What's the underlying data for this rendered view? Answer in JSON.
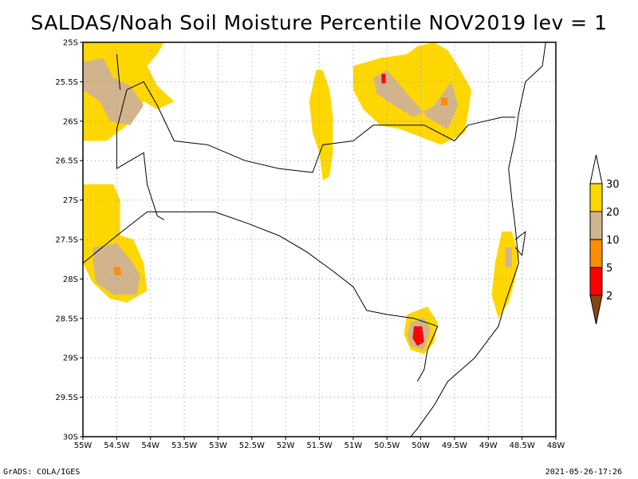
{
  "title": "SALDAS/Noah Soil Moisture Percentile NOV2019 lev = 1",
  "footer": {
    "left": "GrADS: COLA/IGES",
    "right": "2021-05-26-17:26"
  },
  "map_data": {
    "type": "geographic-shaded-map",
    "lon_range": [
      -55,
      -48
    ],
    "lat_range": [
      -30,
      -25
    ],
    "x_ticks": [
      {
        "lon": -55,
        "label": "55W"
      },
      {
        "lon": -54.5,
        "label": "54.5W"
      },
      {
        "lon": -54,
        "label": "54W"
      },
      {
        "lon": -53.5,
        "label": "53.5W"
      },
      {
        "lon": -53,
        "label": "53W"
      },
      {
        "lon": -52.5,
        "label": "52.5W"
      },
      {
        "lon": -52,
        "label": "52W"
      },
      {
        "lon": -51.5,
        "label": "51.5W"
      },
      {
        "lon": -51,
        "label": "51W"
      },
      {
        "lon": -50.5,
        "label": "50.5W"
      },
      {
        "lon": -50,
        "label": "50W"
      },
      {
        "lon": -49.5,
        "label": "49.5W"
      },
      {
        "lon": -49,
        "label": "49W"
      },
      {
        "lon": -48.5,
        "label": "48.5W"
      },
      {
        "lon": -48,
        "label": "48W"
      }
    ],
    "y_ticks": [
      {
        "lat": -25,
        "label": "25S"
      },
      {
        "lat": -25.5,
        "label": "25.5S"
      },
      {
        "lat": -26,
        "label": "26S"
      },
      {
        "lat": -26.5,
        "label": "26.5S"
      },
      {
        "lat": -27,
        "label": "27S"
      },
      {
        "lat": -27.5,
        "label": "27.5S"
      },
      {
        "lat": -28,
        "label": "28S"
      },
      {
        "lat": -28.5,
        "label": "28.5S"
      },
      {
        "lat": -29,
        "label": "29S"
      },
      {
        "lat": -29.5,
        "label": "29.5S"
      },
      {
        "lat": -30,
        "label": "30S"
      }
    ],
    "grid": true,
    "colorbar": {
      "placement": "right",
      "levels": [
        {
          "value": "30",
          "color": "#ffffff"
        },
        {
          "value": "20",
          "color": "#ffd700"
        },
        {
          "value": "10",
          "color": "#d2b48c"
        },
        {
          "value": "5",
          "color": "#ff8c00"
        },
        {
          "value": "2",
          "color": "#ff0000"
        }
      ],
      "below_color": "#8b4513"
    },
    "colors": {
      "yellow": "#ffd700",
      "tan": "#d2b48c",
      "orange": "#ff8c00",
      "red": "#ff0000",
      "brown": "#8b4513"
    },
    "regions": [
      {
        "color": "yellow",
        "polygon": [
          [
            -55,
            -25
          ],
          [
            -53.8,
            -25
          ],
          [
            -53.9,
            -25.15
          ],
          [
            -54.05,
            -25.3
          ],
          [
            -53.9,
            -25.55
          ],
          [
            -53.65,
            -25.75
          ],
          [
            -53.9,
            -25.85
          ],
          [
            -54.1,
            -25.75
          ],
          [
            -54.35,
            -26.05
          ],
          [
            -54.65,
            -26.25
          ],
          [
            -55,
            -26.25
          ]
        ]
      },
      {
        "color": "tan",
        "polygon": [
          [
            -55,
            -25.25
          ],
          [
            -54.7,
            -25.2
          ],
          [
            -54.55,
            -25.45
          ],
          [
            -54.3,
            -25.55
          ],
          [
            -54.1,
            -25.8
          ],
          [
            -54.3,
            -26.05
          ],
          [
            -54.6,
            -26
          ],
          [
            -54.75,
            -25.75
          ],
          [
            -55,
            -25.6
          ]
        ]
      },
      {
        "color": "yellow",
        "polygon": [
          [
            -55,
            -26.8
          ],
          [
            -54.55,
            -26.8
          ],
          [
            -54.45,
            -27
          ],
          [
            -54.45,
            -27.45
          ],
          [
            -54.25,
            -27.5
          ],
          [
            -54.1,
            -27.8
          ],
          [
            -54.05,
            -28.15
          ],
          [
            -54.35,
            -28.3
          ],
          [
            -54.6,
            -28.25
          ],
          [
            -54.85,
            -28.05
          ],
          [
            -55,
            -27.8
          ]
        ]
      },
      {
        "color": "tan",
        "polygon": [
          [
            -54.85,
            -27.6
          ],
          [
            -54.5,
            -27.55
          ],
          [
            -54.3,
            -27.75
          ],
          [
            -54.15,
            -27.95
          ],
          [
            -54.2,
            -28.2
          ],
          [
            -54.55,
            -28.2
          ],
          [
            -54.8,
            -28.05
          ],
          [
            -54.85,
            -27.8
          ]
        ]
      },
      {
        "color": "orange",
        "polygon": [
          [
            -54.55,
            -27.85
          ],
          [
            -54.45,
            -27.85
          ],
          [
            -54.43,
            -27.95
          ],
          [
            -54.53,
            -27.95
          ]
        ]
      },
      {
        "color": "yellow",
        "polygon": [
          [
            -51.55,
            -25.35
          ],
          [
            -51.45,
            -25.35
          ],
          [
            -51.35,
            -25.6
          ],
          [
            -51.3,
            -25.95
          ],
          [
            -51.3,
            -26.4
          ],
          [
            -51.35,
            -26.7
          ],
          [
            -51.45,
            -26.75
          ],
          [
            -51.5,
            -26.4
          ],
          [
            -51.6,
            -26.15
          ],
          [
            -51.65,
            -25.75
          ]
        ]
      },
      {
        "color": "yellow",
        "polygon": [
          [
            -51,
            -25.3
          ],
          [
            -50.6,
            -25.2
          ],
          [
            -50.2,
            -25.15
          ],
          [
            -50.05,
            -25.05
          ],
          [
            -49.8,
            -25
          ],
          [
            -49.6,
            -25.1
          ],
          [
            -49.45,
            -25.3
          ],
          [
            -49.25,
            -25.6
          ],
          [
            -49.3,
            -25.9
          ],
          [
            -49.35,
            -26.15
          ],
          [
            -49.7,
            -26.3
          ],
          [
            -50,
            -26.2
          ],
          [
            -50.3,
            -26.1
          ],
          [
            -50.6,
            -26.05
          ],
          [
            -50.85,
            -25.85
          ],
          [
            -51,
            -25.6
          ]
        ]
      },
      {
        "color": "tan",
        "polygon": [
          [
            -50.7,
            -25.45
          ],
          [
            -50.5,
            -25.35
          ],
          [
            -50.3,
            -25.55
          ],
          [
            -50.1,
            -25.75
          ],
          [
            -49.9,
            -25.95
          ],
          [
            -49.6,
            -26.1
          ],
          [
            -49.45,
            -25.8
          ],
          [
            -49.55,
            -25.5
          ],
          [
            -49.8,
            -25.8
          ],
          [
            -50.1,
            -25.95
          ],
          [
            -50.4,
            -25.8
          ],
          [
            -50.65,
            -25.65
          ]
        ]
      },
      {
        "color": "red",
        "polygon": [
          [
            -50.58,
            -25.4
          ],
          [
            -50.52,
            -25.4
          ],
          [
            -50.52,
            -25.52
          ],
          [
            -50.58,
            -25.52
          ]
        ]
      },
      {
        "color": "orange",
        "polygon": [
          [
            -49.7,
            -25.7
          ],
          [
            -49.6,
            -25.7
          ],
          [
            -49.6,
            -25.8
          ],
          [
            -49.7,
            -25.8
          ]
        ]
      },
      {
        "color": "yellow",
        "polygon": [
          [
            -48.8,
            -27.4
          ],
          [
            -48.65,
            -27.4
          ],
          [
            -48.55,
            -27.7
          ],
          [
            -48.6,
            -28
          ],
          [
            -48.7,
            -28.3
          ],
          [
            -48.85,
            -28.5
          ],
          [
            -48.95,
            -28.2
          ],
          [
            -48.9,
            -27.8
          ]
        ]
      },
      {
        "color": "tan",
        "polygon": [
          [
            -48.75,
            -27.6
          ],
          [
            -48.65,
            -27.6
          ],
          [
            -48.65,
            -27.85
          ],
          [
            -48.75,
            -27.85
          ]
        ]
      },
      {
        "color": "yellow",
        "polygon": [
          [
            -50.2,
            -28.45
          ],
          [
            -49.9,
            -28.35
          ],
          [
            -49.75,
            -28.55
          ],
          [
            -49.8,
            -28.8
          ],
          [
            -49.95,
            -28.95
          ],
          [
            -50.15,
            -28.9
          ],
          [
            -50.25,
            -28.7
          ]
        ]
      },
      {
        "color": "tan",
        "polygon": [
          [
            -50.15,
            -28.55
          ],
          [
            -49.95,
            -28.5
          ],
          [
            -49.85,
            -28.65
          ],
          [
            -49.95,
            -28.9
          ],
          [
            -50.15,
            -28.85
          ],
          [
            -50.2,
            -28.7
          ]
        ]
      },
      {
        "color": "red",
        "polygon": [
          [
            -50.1,
            -28.6
          ],
          [
            -49.98,
            -28.6
          ],
          [
            -49.95,
            -28.8
          ],
          [
            -50.05,
            -28.85
          ],
          [
            -50.12,
            -28.75
          ]
        ]
      }
    ],
    "boundaries": [
      {
        "kind": "coast",
        "points": [
          [
            -48.15,
            -25
          ],
          [
            -48.2,
            -25.3
          ],
          [
            -48.45,
            -25.5
          ],
          [
            -48.55,
            -25.9
          ],
          [
            -48.6,
            -26.2
          ],
          [
            -48.7,
            -26.6
          ],
          [
            -48.65,
            -27
          ],
          [
            -48.6,
            -27.35
          ],
          [
            -48.55,
            -27.8
          ],
          [
            -48.75,
            -28.3
          ],
          [
            -48.85,
            -28.6
          ],
          [
            -49.2,
            -29
          ],
          [
            -49.6,
            -29.3
          ],
          [
            -49.8,
            -29.6
          ],
          [
            -50.05,
            -29.9
          ],
          [
            -50.15,
            -30
          ]
        ]
      },
      {
        "kind": "state",
        "points": [
          [
            -54.35,
            -25.6
          ],
          [
            -54.1,
            -25.5
          ],
          [
            -53.9,
            -25.8
          ],
          [
            -53.65,
            -26.25
          ],
          [
            -53.15,
            -26.3
          ],
          [
            -52.6,
            -26.5
          ],
          [
            -52.1,
            -26.6
          ],
          [
            -51.6,
            -26.65
          ],
          [
            -51.45,
            -26.3
          ],
          [
            -51,
            -26.25
          ],
          [
            -50.7,
            -26.05
          ],
          [
            -50.35,
            -26.05
          ],
          [
            -49.95,
            -26.05
          ],
          [
            -49.5,
            -26.25
          ],
          [
            -49.3,
            -26.05
          ],
          [
            -48.8,
            -25.95
          ],
          [
            -48.6,
            -25.95
          ]
        ]
      },
      {
        "kind": "state",
        "points": [
          [
            -55,
            -27.8
          ],
          [
            -54.5,
            -27.45
          ],
          [
            -54.05,
            -27.15
          ],
          [
            -53.5,
            -27.15
          ],
          [
            -53.05,
            -27.15
          ],
          [
            -52.55,
            -27.3
          ],
          [
            -52.1,
            -27.45
          ],
          [
            -51.7,
            -27.65
          ],
          [
            -51.3,
            -27.9
          ],
          [
            -51,
            -28.1
          ],
          [
            -50.8,
            -28.4
          ],
          [
            -50.5,
            -28.45
          ],
          [
            -50.1,
            -28.5
          ],
          [
            -49.75,
            -28.6
          ],
          [
            -49.9,
            -28.9
          ],
          [
            -49.95,
            -29.15
          ],
          [
            -50.05,
            -29.3
          ]
        ]
      },
      {
        "kind": "country",
        "points": [
          [
            -54.35,
            -25.6
          ],
          [
            -54.5,
            -26.1
          ],
          [
            -54.5,
            -26.6
          ],
          [
            -54.1,
            -26.4
          ],
          [
            -54.05,
            -26.8
          ],
          [
            -53.9,
            -27.2
          ],
          [
            -53.8,
            -27.25
          ]
        ]
      },
      {
        "kind": "country",
        "points": [
          [
            -54.5,
            -25.15
          ],
          [
            -54.45,
            -25.6
          ]
        ]
      },
      {
        "kind": "lagoon",
        "points": [
          [
            -48.6,
            -27.5
          ],
          [
            -48.45,
            -27.4
          ],
          [
            -48.5,
            -27.7
          ],
          [
            -48.6,
            -27.6
          ]
        ]
      }
    ]
  }
}
